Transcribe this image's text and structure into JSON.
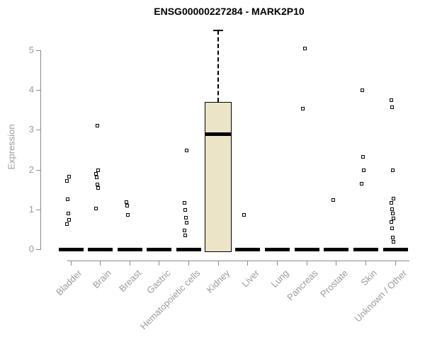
{
  "title": "ENSG00000227284 - MARK2P10",
  "colors": {
    "box_fill": "#ece4c6",
    "box_border": "#000000",
    "axis": "#8a8a8a",
    "tick_label": "#9b9b9b",
    "title": "#000000",
    "zero_bar": "#000000"
  },
  "chart_data": {
    "type": "boxplot",
    "title": "ENSG00000227284 - MARK2P10",
    "xlabel": "",
    "ylabel": "Expression",
    "ylim": [
      0,
      5
    ],
    "yticks": [
      0,
      1,
      2,
      3,
      4,
      5
    ],
    "grid": false,
    "legend": "none",
    "note": "All categories have a collapsed box (median bar) at 0; Kidney has a full box; open-square markers are individual expression outlier points",
    "categories": [
      "Bladder",
      "Brain",
      "Breast",
      "Gastric",
      "Hematopoietic cells",
      "Kidney",
      "Liver",
      "Lung",
      "Pancreas",
      "Prostate",
      "Skin",
      "Unknown / Other"
    ],
    "series": [
      {
        "label": "Bladder",
        "box": {
          "low": 0,
          "q1": 0,
          "median": 0,
          "q3": 0,
          "high": 0
        },
        "points": [
          1.83,
          1.72,
          1.25,
          0.89,
          0.73,
          0.64
        ]
      },
      {
        "label": "Brain",
        "box": {
          "low": 0,
          "q1": 0,
          "median": 0,
          "q3": 0,
          "high": 0
        },
        "points": [
          3.1,
          1.99,
          1.9,
          1.81,
          1.63,
          1.54,
          1.02
        ]
      },
      {
        "label": "Breast",
        "box": {
          "low": 0,
          "q1": 0,
          "median": 0,
          "q3": 0,
          "high": 0
        },
        "points": [
          1.19,
          1.09,
          0.86
        ]
      },
      {
        "label": "Gastric",
        "box": {
          "low": 0,
          "q1": 0,
          "median": 0,
          "q3": 0,
          "high": 0
        },
        "points": []
      },
      {
        "label": "Hematopoietic cells",
        "box": {
          "low": 0,
          "q1": 0,
          "median": 0,
          "q3": 0,
          "high": 0
        },
        "points": [
          2.49,
          1.17,
          0.98,
          0.8,
          0.67,
          0.48,
          0.34
        ]
      },
      {
        "label": "Kidney",
        "box": {
          "low": 0,
          "q1": 0,
          "median": 2.9,
          "q3": 3.7,
          "high": 5.5
        },
        "points": []
      },
      {
        "label": "Liver",
        "box": {
          "low": 0,
          "q1": 0,
          "median": 0,
          "q3": 0,
          "high": 0
        },
        "points": [
          0.87
        ]
      },
      {
        "label": "Lung",
        "box": {
          "low": 0,
          "q1": 0,
          "median": 0,
          "q3": 0,
          "high": 0
        },
        "points": []
      },
      {
        "label": "Pancreas",
        "box": {
          "low": 0,
          "q1": 0,
          "median": 0,
          "q3": 0,
          "high": 0
        },
        "points": [
          5.05,
          3.54
        ]
      },
      {
        "label": "Prostate",
        "box": {
          "low": 0,
          "q1": 0,
          "median": 0,
          "q3": 0,
          "high": 0
        },
        "points": [
          1.23
        ]
      },
      {
        "label": "Skin",
        "box": {
          "low": 0,
          "q1": 0,
          "median": 0,
          "q3": 0,
          "high": 0
        },
        "points": [
          4.0,
          2.32,
          1.98,
          1.64
        ]
      },
      {
        "label": "Unknown / Other",
        "box": {
          "low": 0,
          "q1": 0,
          "median": 0,
          "q3": 0,
          "high": 0
        },
        "points": [
          3.74,
          3.56,
          1.99,
          1.28,
          1.17,
          1.0,
          0.9,
          0.78,
          0.68,
          0.53,
          0.3,
          0.18
        ]
      }
    ]
  }
}
